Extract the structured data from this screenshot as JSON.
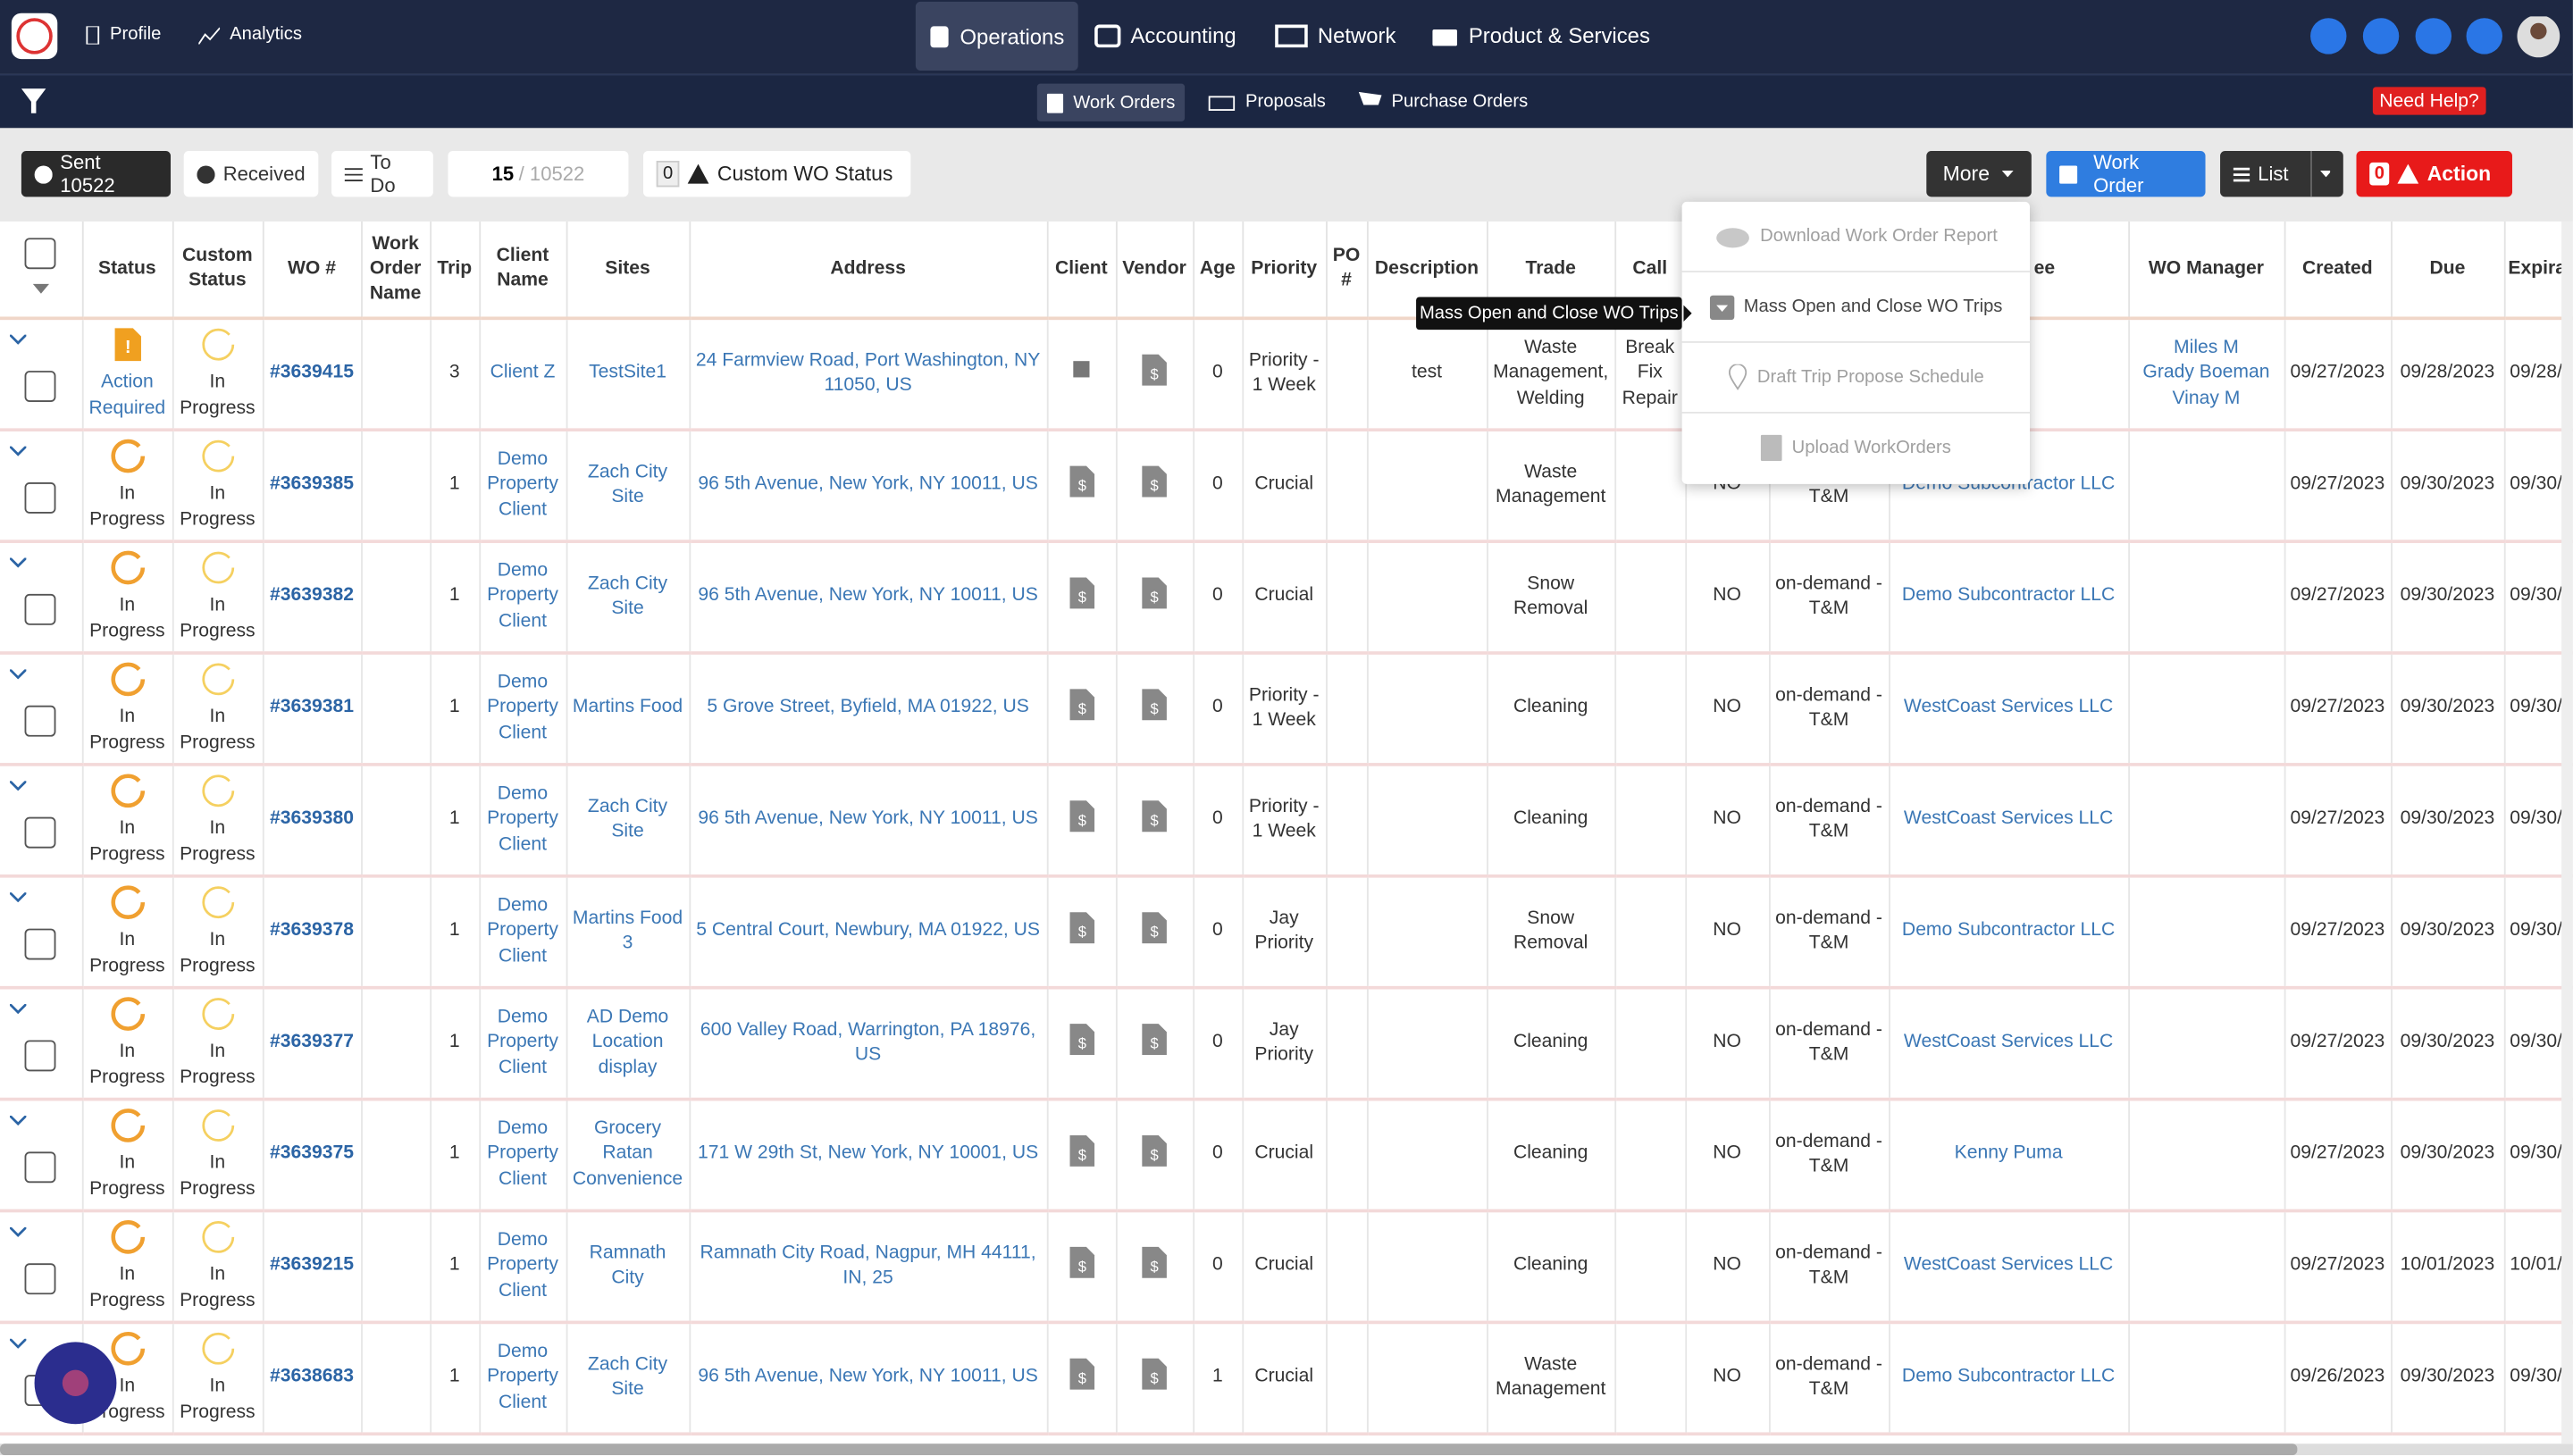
{
  "nav": {
    "items": [
      "Profile",
      "Analytics"
    ],
    "tabs": [
      "Operations",
      "Accounting",
      "Network",
      "Product & Services"
    ]
  },
  "subnav": {
    "tabs": [
      "Work Orders",
      "Proposals",
      "Purchase Orders"
    ],
    "help": "Need Help?"
  },
  "toolbar": {
    "sent": "Sent 10522",
    "received": "Received",
    "todo": "To Do",
    "page_current": "15",
    "page_total": "/ 10522",
    "custom_count": "0",
    "custom": "Custom WO Status",
    "more": "More",
    "work_order": "Work Order",
    "list": "List",
    "action_count": "0",
    "action": "Action"
  },
  "menu": {
    "items": [
      "Download Work Order Report",
      "Mass Open and Close WO Trips",
      "Draft Trip Propose Schedule",
      "Upload WorkOrders"
    ],
    "tooltip": "Mass Open and Close WO Trips"
  },
  "table": {
    "headers": [
      null,
      "Status",
      "Custom Status",
      "WO #",
      "Work Order Name",
      "Trip",
      "Client Name",
      "Sites",
      "Address",
      "Client",
      "Vendor",
      "Age",
      "Priority",
      "PO #",
      "Description",
      "Trade",
      "Call",
      null,
      null,
      "ee",
      "WO Manager",
      "Created",
      "Due",
      "Expira"
    ],
    "rows": [
      {
        "status": "Action Required",
        "custom_status": "In Progress",
        "wo": "#3639415",
        "trip": 3,
        "client_name": "Client Z",
        "site": "TestSite1",
        "address": "24 Farmview Road, Port Washington, NY 11050, US",
        "age": 0,
        "priority": "Priority - 1 Week",
        "description": "test",
        "trade": "Waste Management, Welding",
        "call": "Break Fix Repair",
        "manager": [
          "Miles M",
          "Grady Boeman",
          "Vinay M"
        ],
        "created": "09/27/2023",
        "due": "09/28/2023",
        "expiration": "09/28/"
      },
      {
        "status": "In Progress",
        "custom_status": "In Progress",
        "wo": "#3639385",
        "trip": 1,
        "client_name": "Demo Property Client",
        "site": "Zach City Site",
        "address": "96 5th Avenue, New York, NY 10011, US",
        "age": 0,
        "priority": "Crucial",
        "trade": "Waste Management",
        "flag": "NO",
        "billing": "on-demand - T&M",
        "assignee": "Demo Subcontractor LLC",
        "created": "09/27/2023",
        "due": "09/30/2023",
        "expiration": "09/30/"
      },
      {
        "status": "In Progress",
        "custom_status": "In Progress",
        "wo": "#3639382",
        "trip": 1,
        "client_name": "Demo Property Client",
        "site": "Zach City Site",
        "address": "96 5th Avenue, New York, NY 10011, US",
        "age": 0,
        "priority": "Crucial",
        "trade": "Snow Removal",
        "flag": "NO",
        "billing": "on-demand - T&M",
        "assignee": "Demo Subcontractor LLC",
        "created": "09/27/2023",
        "due": "09/30/2023",
        "expiration": "09/30/"
      },
      {
        "status": "In Progress",
        "custom_status": "In Progress",
        "wo": "#3639381",
        "trip": 1,
        "client_name": "Demo Property Client",
        "site": "Martins Food",
        "address": "5 Grove Street, Byfield, MA 01922, US",
        "age": 0,
        "priority": "Priority - 1 Week",
        "trade": "Cleaning",
        "flag": "NO",
        "billing": "on-demand - T&M",
        "assignee": "WestCoast Services LLC",
        "created": "09/27/2023",
        "due": "09/30/2023",
        "expiration": "09/30/"
      },
      {
        "status": "In Progress",
        "custom_status": "In Progress",
        "wo": "#3639380",
        "trip": 1,
        "client_name": "Demo Property Client",
        "site": "Zach City Site",
        "address": "96 5th Avenue, New York, NY 10011, US",
        "age": 0,
        "priority": "Priority - 1 Week",
        "trade": "Cleaning",
        "flag": "NO",
        "billing": "on-demand - T&M",
        "assignee": "WestCoast Services LLC",
        "created": "09/27/2023",
        "due": "09/30/2023",
        "expiration": "09/30/"
      },
      {
        "status": "In Progress",
        "custom_status": "In Progress",
        "wo": "#3639378",
        "trip": 1,
        "client_name": "Demo Property Client",
        "site": "Martins Food 3",
        "address": "5 Central Court, Newbury, MA 01922, US",
        "age": 0,
        "priority": "Jay Priority",
        "trade": "Snow Removal",
        "flag": "NO",
        "billing": "on-demand - T&M",
        "assignee": "Demo Subcontractor LLC",
        "created": "09/27/2023",
        "due": "09/30/2023",
        "expiration": "09/30/"
      },
      {
        "status": "In Progress",
        "custom_status": "In Progress",
        "wo": "#3639377",
        "trip": 1,
        "client_name": "Demo Property Client",
        "site": "AD Demo Location display",
        "address": "600 Valley Road, Warrington, PA 18976, US",
        "age": 0,
        "priority": "Jay Priority",
        "trade": "Cleaning",
        "flag": "NO",
        "billing": "on-demand - T&M",
        "assignee": "WestCoast Services LLC",
        "created": "09/27/2023",
        "due": "09/30/2023",
        "expiration": "09/30/"
      },
      {
        "status": "In Progress",
        "custom_status": "In Progress",
        "wo": "#3639375",
        "trip": 1,
        "client_name": "Demo Property Client",
        "site": "Grocery Ratan Convenience",
        "address": "171 W 29th St, New York, NY 10001, US",
        "age": 0,
        "priority": "Crucial",
        "trade": "Cleaning",
        "flag": "NO",
        "billing": "on-demand - T&M",
        "assignee": "Kenny Puma",
        "created": "09/27/2023",
        "due": "09/30/2023",
        "expiration": "09/30/"
      },
      {
        "status": "In Progress",
        "custom_status": "In Progress",
        "wo": "#3639215",
        "trip": 1,
        "client_name": "Demo Property Client",
        "site": "Ramnath City",
        "address": "Ramnath City Road, Nagpur, MH 44111, IN, 25",
        "age": 0,
        "priority": "Crucial",
        "trade": "Cleaning",
        "flag": "NO",
        "billing": "on-demand - T&M",
        "assignee": "WestCoast Services LLC",
        "created": "09/27/2023",
        "due": "10/01/2023",
        "expiration": "10/01/"
      },
      {
        "status": "In Progress",
        "custom_status": "In Progress",
        "wo": "#3638683",
        "trip": 1,
        "client_name": "Demo Property Client",
        "site": "Zach City Site",
        "address": "96 5th Avenue, New York, NY 10011, US",
        "age": 1,
        "priority": "Crucial",
        "trade": "Waste Management",
        "flag": "NO",
        "billing": "on-demand - T&M",
        "assignee": "Demo Subcontractor LLC",
        "created": "09/26/2023",
        "due": "09/30/2023",
        "expiration": "09/30/"
      }
    ]
  }
}
